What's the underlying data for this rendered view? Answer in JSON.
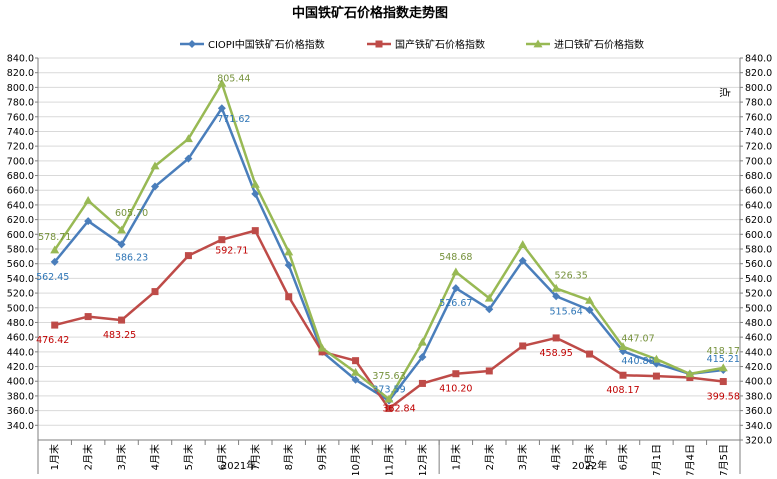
{
  "chart_data": {
    "type": "line",
    "title": "中国铁矿石价格指数走势图",
    "ylabel_right": "点",
    "ylim": [
      320,
      840
    ],
    "yticks_left": [
      "340.0",
      "360.0",
      "380.0",
      "400.0",
      "420.0",
      "440.0",
      "460.0",
      "480.0",
      "500.0",
      "520.0",
      "540.0",
      "560.0",
      "580.0",
      "600.0",
      "620.0",
      "640.0",
      "660.0",
      "680.0",
      "700.0",
      "720.0",
      "740.0",
      "760.0",
      "780.0",
      "800.0",
      "820.0",
      "840.0"
    ],
    "yticks_right": [
      "320.0",
      "340.0",
      "360.0",
      "380.0",
      "400.0",
      "420.0",
      "440.0",
      "460.0",
      "480.0",
      "500.0",
      "520.0",
      "540.0",
      "560.0",
      "580.0",
      "600.0",
      "620.0",
      "640.0",
      "660.0",
      "680.0",
      "700.0",
      "720.0",
      "740.0",
      "760.0",
      "780.0",
      "800.0",
      "820.0",
      "840.0"
    ],
    "categories": [
      "1月末",
      "2月末",
      "3月末",
      "4月末",
      "5月末",
      "6月末",
      "7月末",
      "8月末",
      "9月末",
      "10月末",
      "11月末",
      "12月末",
      "1月末",
      "2月末",
      "3月末",
      "4月末",
      "5月末",
      "6月末",
      "7月1日",
      "7月4日",
      "7月5日"
    ],
    "groups": [
      {
        "label": "2021年",
        "span": [
          0,
          11
        ]
      },
      {
        "label": "2022年",
        "span": [
          12,
          20
        ]
      }
    ],
    "series": [
      {
        "name": "CIOPI中国铁矿石价格指数",
        "color": "#4a7ebb",
        "marker": "diamond",
        "values": [
          562.45,
          618,
          586.23,
          665,
          703,
          771.62,
          655,
          558,
          440,
          402,
          373.59,
          433,
          526.67,
          498,
          564,
          515.64,
          497,
          440.88,
          424,
          410,
          415.21
        ],
        "labels": {
          "0": "562.45",
          "2": "586.23",
          "5": "771.62",
          "10": "373.59",
          "12": "526.67",
          "15": "515.64",
          "17": "440.88",
          "20": "415.21"
        }
      },
      {
        "name": "国产铁矿石价格指数",
        "color": "#be4b48",
        "marker": "square",
        "values": [
          476.42,
          488,
          483.25,
          522,
          571,
          592.71,
          605,
          515,
          440,
          428,
          362.84,
          397,
          410.2,
          414,
          448,
          458.95,
          437,
          408.17,
          407,
          405,
          399.58
        ],
        "labels": {
          "0": "476.42",
          "2": "483.25",
          "5": "592.71",
          "10": "362.84",
          "12": "410.20",
          "15": "458.95",
          "17": "408.17",
          "20": "399.58"
        }
      },
      {
        "name": "进口铁矿石价格指数",
        "color": "#98b954",
        "marker": "triangle",
        "values": [
          578.71,
          646,
          605.7,
          693,
          730,
          805.44,
          668,
          576,
          445,
          412,
          375.63,
          453,
          548.68,
          513,
          586,
          526.35,
          510,
          447.07,
          430,
          410,
          418.17
        ],
        "labels": {
          "0": "578.71",
          "2": "605.70",
          "5": "805.44",
          "10": "375.63",
          "12": "548.68",
          "15": "526.35",
          "17": "447.07",
          "20": "418.17"
        }
      }
    ],
    "legend_position": "top"
  }
}
